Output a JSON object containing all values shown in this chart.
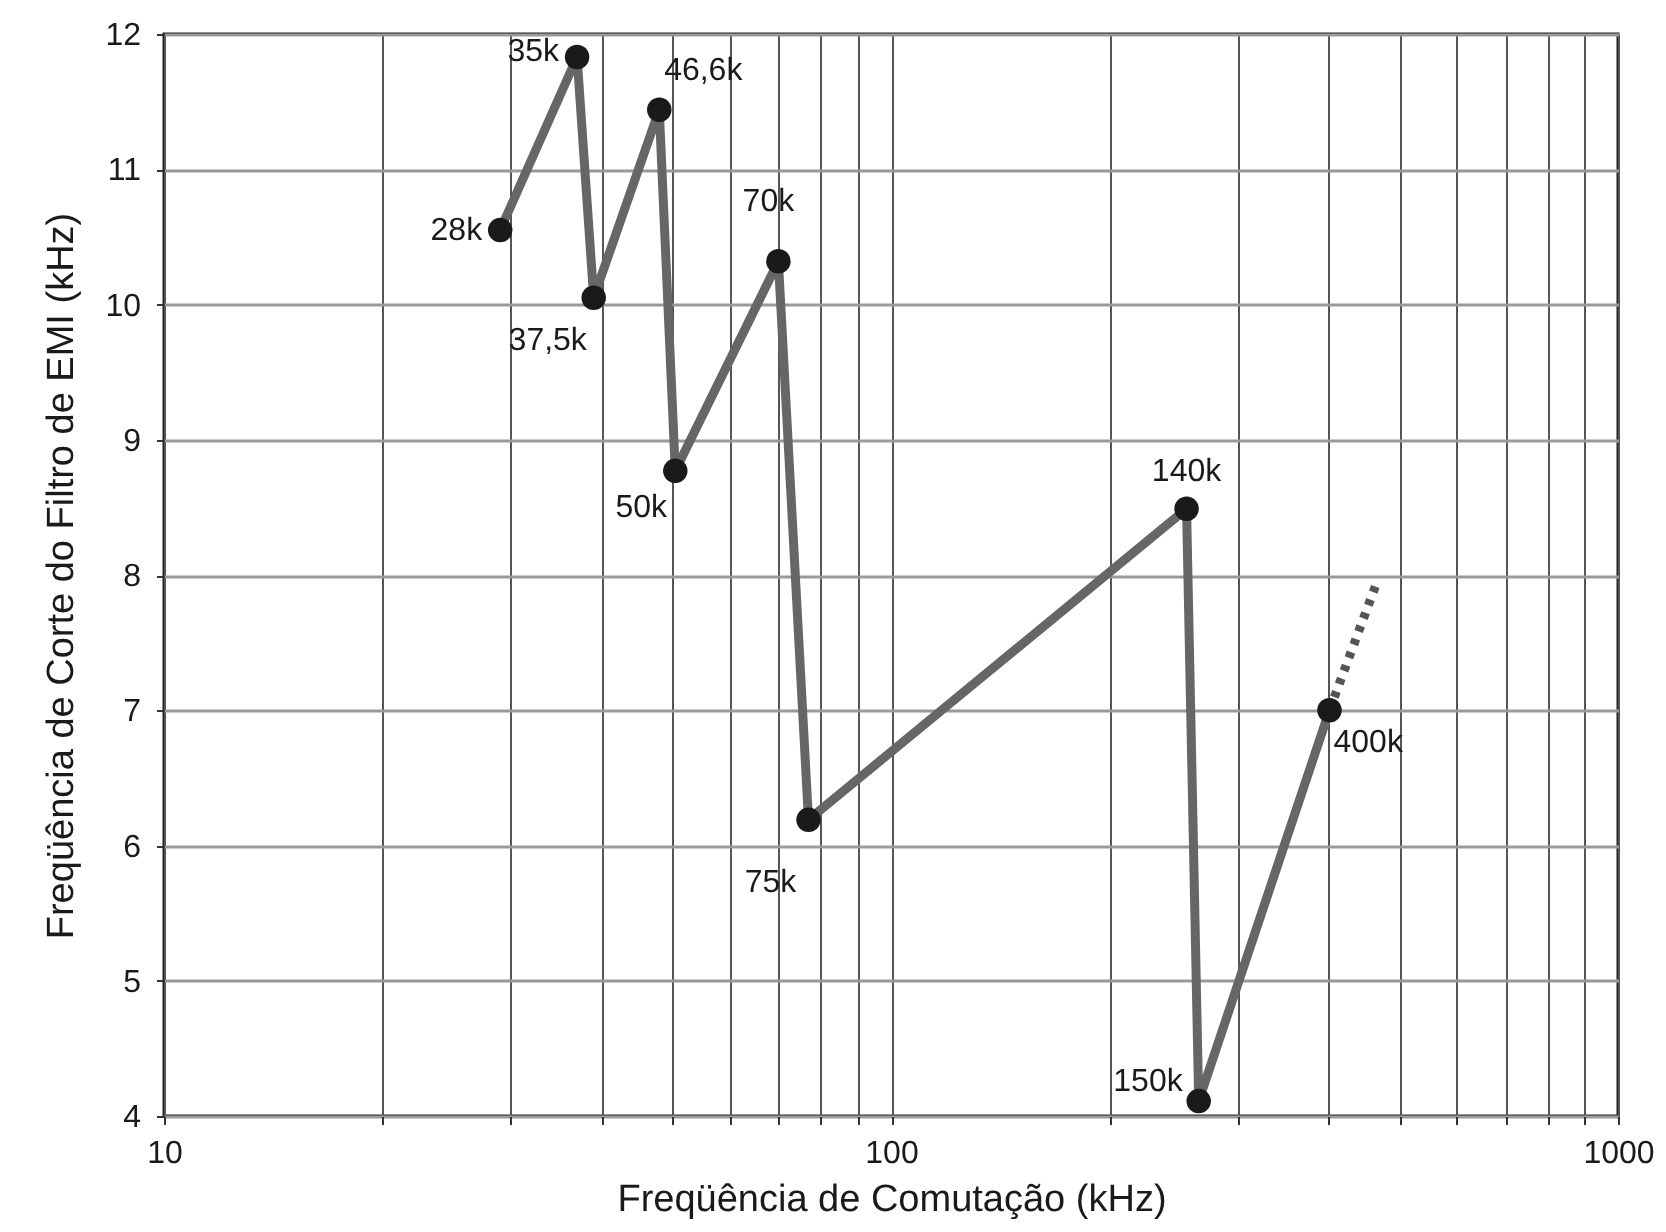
{
  "chart_data": {
    "type": "line",
    "xlabel": "Freqüência de Comutação (kHz)",
    "ylabel": "Freqüência de Corte do Filtro de EMI (kHz)",
    "x": [
      29,
      37,
      39,
      48,
      50.5,
      70,
      77,
      255,
      265,
      401
    ],
    "series": [
      {
        "color": "#666666",
        "values": [
          10.55,
          11.83,
          10.05,
          11.44,
          8.77,
          10.32,
          6.19,
          8.49,
          4.11,
          7.0
        ]
      },
      {
        "type": "line",
        "x": [
          401,
          464
        ],
        "values": [
          7.0,
          7.92
        ],
        "color": "#555555",
        "line_style": "dotted",
        "marker": "none"
      }
    ],
    "annotations": [
      {
        "text": "28k",
        "x": 29,
        "y": 10.55
      },
      {
        "text": "35k",
        "x": 37,
        "y": 11.83
      },
      {
        "text": "37,5k",
        "x": 39,
        "y": 10.05
      },
      {
        "text": "46,6k",
        "x": 48,
        "y": 11.44
      },
      {
        "text": "50k",
        "x": 50.5,
        "y": 8.77
      },
      {
        "text": "70k",
        "x": 70,
        "y": 10.32
      },
      {
        "text": "75k",
        "x": 77,
        "y": 6.19
      },
      {
        "text": "140k",
        "x": 255,
        "y": 8.49
      },
      {
        "text": "150k",
        "x": 265,
        "y": 4.11
      },
      {
        "text": "400k",
        "x": 401,
        "y": 7.0
      }
    ],
    "xlim": [
      10,
      1000
    ],
    "ylim": [
      4,
      12
    ],
    "xticks": [
      10,
      {
        "value": 20,
        "label": null
      },
      {
        "value": 30,
        "label": null
      },
      {
        "value": 40,
        "label": null
      },
      {
        "value": 50,
        "label": null
      },
      {
        "value": 60,
        "label": null
      },
      {
        "value": 70,
        "label": null
      },
      {
        "value": 80,
        "label": null
      },
      {
        "value": 90,
        "label": null
      },
      100,
      {
        "value": 200,
        "label": null
      },
      {
        "value": 300,
        "label": null
      },
      {
        "value": 400,
        "label": null
      },
      {
        "value": 500,
        "label": null
      },
      {
        "value": 600,
        "label": null
      },
      {
        "value": 700,
        "label": null
      },
      {
        "value": 800,
        "label": null
      },
      {
        "value": 900,
        "label": null
      },
      1000
    ],
    "yticks": [
      4,
      5,
      6,
      7,
      8,
      9,
      10,
      11,
      12
    ],
    "log": "x",
    "grid": true,
    "marker": "circle",
    "line_style": "solid"
  }
}
